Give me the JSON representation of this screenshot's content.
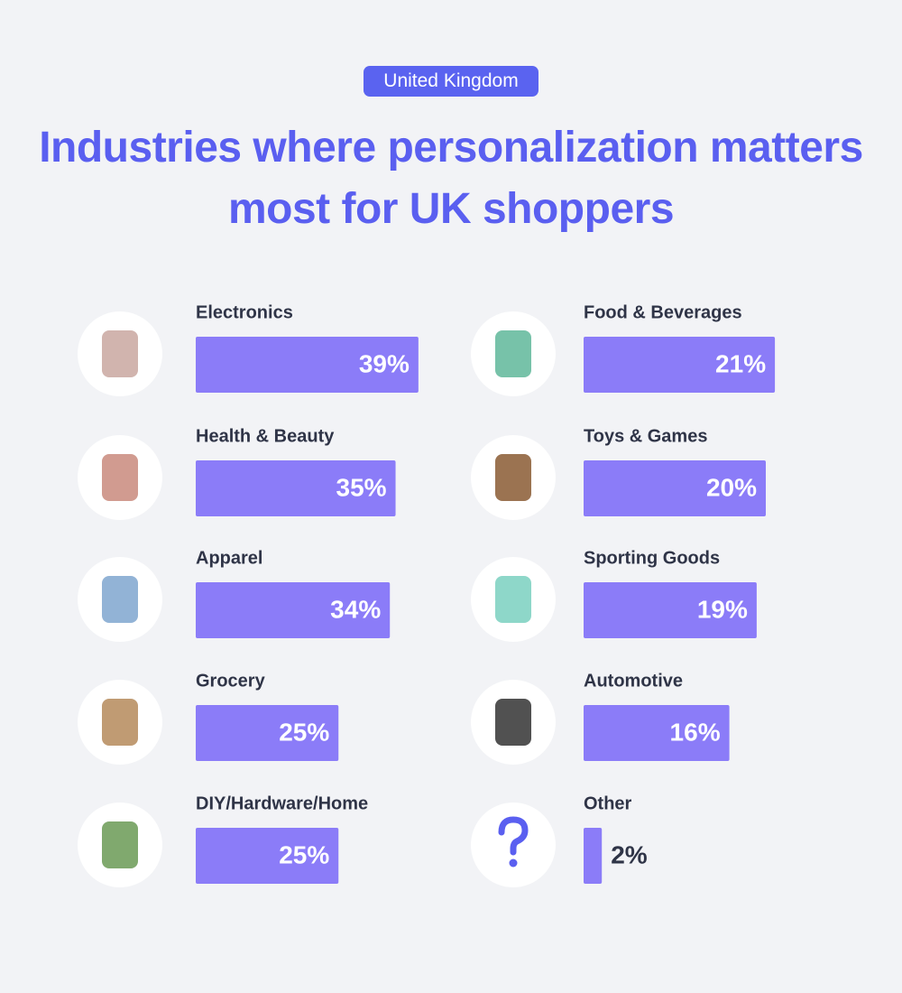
{
  "chart_data": {
    "type": "bar",
    "subtitle": "United Kingdom",
    "title": "Industries where personalization matters most for UK shoppers",
    "categories": [
      "Electronics",
      "Health & Beauty",
      "Apparel",
      "Grocery",
      "DIY/Hardware/Home",
      "Food & Beverages",
      "Toys & Games",
      "Sporting Goods",
      "Automotive",
      "Other"
    ],
    "values": [
      39,
      35,
      34,
      25,
      25,
      21,
      20,
      19,
      16,
      2
    ],
    "value_labels": [
      "39%",
      "35%",
      "34%",
      "25%",
      "25%",
      "21%",
      "20%",
      "19%",
      "16%",
      "2%"
    ],
    "color": "#8b7cf8"
  }
}
